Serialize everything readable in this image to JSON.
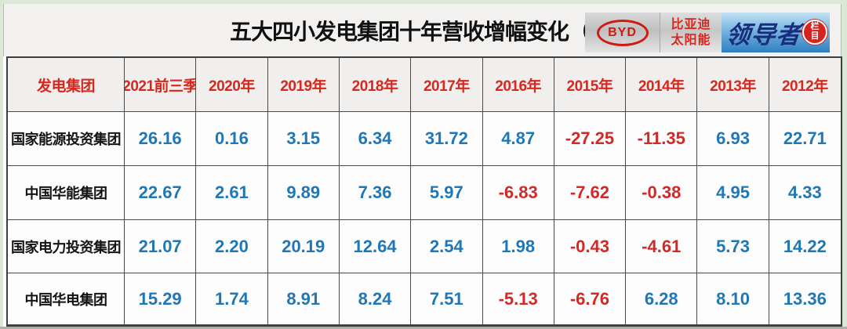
{
  "title": {
    "text": "五大四小发电集团十年营收增幅变化",
    "paren_open": "（",
    "percent": "%",
    "paren_close": "）"
  },
  "logo": {
    "byd": "BYD",
    "sub_line1": "比亚迪",
    "sub_line2": "太阳能",
    "leader": "领导者",
    "badge_line1": "栏",
    "badge_line2": "目"
  },
  "chart_data": {
    "type": "table",
    "title": "五大四小发电集团十年营收增幅变化（%）",
    "columns": [
      "发电集团",
      "2021前三季",
      "2020年",
      "2019年",
      "2018年",
      "2017年",
      "2016年",
      "2015年",
      "2014年",
      "2013年",
      "2012年"
    ],
    "rows": [
      {
        "name": "国家能源投资集团",
        "values": [
          "26.16",
          "0.16",
          "3.15",
          "6.34",
          "31.72",
          "4.87",
          "-27.25",
          "-11.35",
          "6.93",
          "22.71"
        ]
      },
      {
        "name": "中国华能集团",
        "values": [
          "22.67",
          "2.61",
          "9.89",
          "7.36",
          "5.97",
          "-6.83",
          "-7.62",
          "-0.38",
          "4.95",
          "4.33"
        ]
      },
      {
        "name": "国家电力投资集团",
        "values": [
          "21.07",
          "2.20",
          "20.19",
          "12.64",
          "2.54",
          "1.98",
          "-0.43",
          "-4.61",
          "5.73",
          "14.22"
        ]
      },
      {
        "name": "中国华电集团",
        "values": [
          "15.29",
          "1.74",
          "8.91",
          "8.24",
          "7.51",
          "-5.13",
          "-6.76",
          "6.28",
          "8.10",
          "13.36"
        ]
      }
    ],
    "layout": {
      "header_text_color": "#d5281e",
      "positive_color": "#1f78b5",
      "negative_color": "#d02a28",
      "unit": "%"
    }
  },
  "colors": {
    "edge_green": "#dce8d6",
    "title_bg": "#f2f1ef",
    "header_bg": "#f0efed",
    "border": "#4a4a4a",
    "brand_red": "#cf1a14",
    "leader_blue": "#2e7fc0"
  }
}
